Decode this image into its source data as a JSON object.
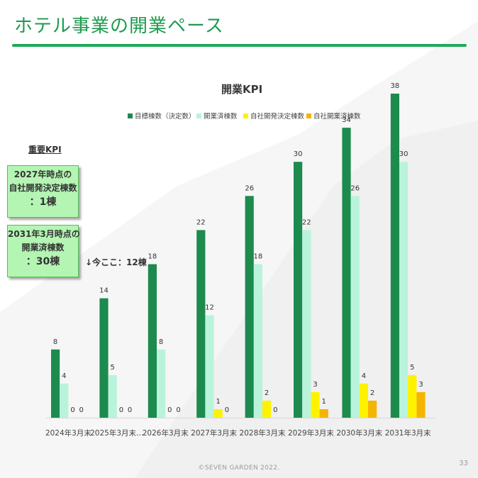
{
  "title": "ホテル事業の開業ペース",
  "kpi": {
    "heading": "重要KPI",
    "boxes": [
      {
        "line1": "2027年時点の",
        "line2": "自社開発決定棟数",
        "line3": "：1棟"
      },
      {
        "line1": "2031年3月時点の",
        "line2": "開業済棟数",
        "line3": "：30棟"
      }
    ]
  },
  "annotation": "↓今ここ：12棟",
  "footer": "©SEVEN GARDEN 2022.",
  "page_number": "33",
  "colors": {
    "accent": "#1faa59",
    "series": [
      "#1d8a4e",
      "#b9f3dc",
      "#fff200",
      "#f5b400"
    ]
  },
  "chart_data": {
    "type": "bar",
    "title": "開業KPI",
    "categories": [
      "2024年3月末",
      "2025年3月末…",
      "2026年3月末",
      "2027年3月末",
      "2028年3月末",
      "2029年3月末",
      "2030年3月末",
      "2031年3月末"
    ],
    "series": [
      {
        "name": "目標棟数（決定数）",
        "values": [
          8,
          14,
          18,
          22,
          26,
          30,
          34,
          38
        ]
      },
      {
        "name": "開業済棟数",
        "values": [
          4,
          5,
          8,
          12,
          18,
          22,
          26,
          30
        ]
      },
      {
        "name": "自社開発決定棟数",
        "values": [
          0,
          0,
          0,
          1,
          2,
          3,
          4,
          5
        ]
      },
      {
        "name": "自社開業済棟数",
        "values": [
          0,
          0,
          0,
          0,
          0,
          1,
          2,
          3
        ]
      }
    ],
    "ylim": [
      0,
      38
    ],
    "legend": "top",
    "grid": false
  }
}
